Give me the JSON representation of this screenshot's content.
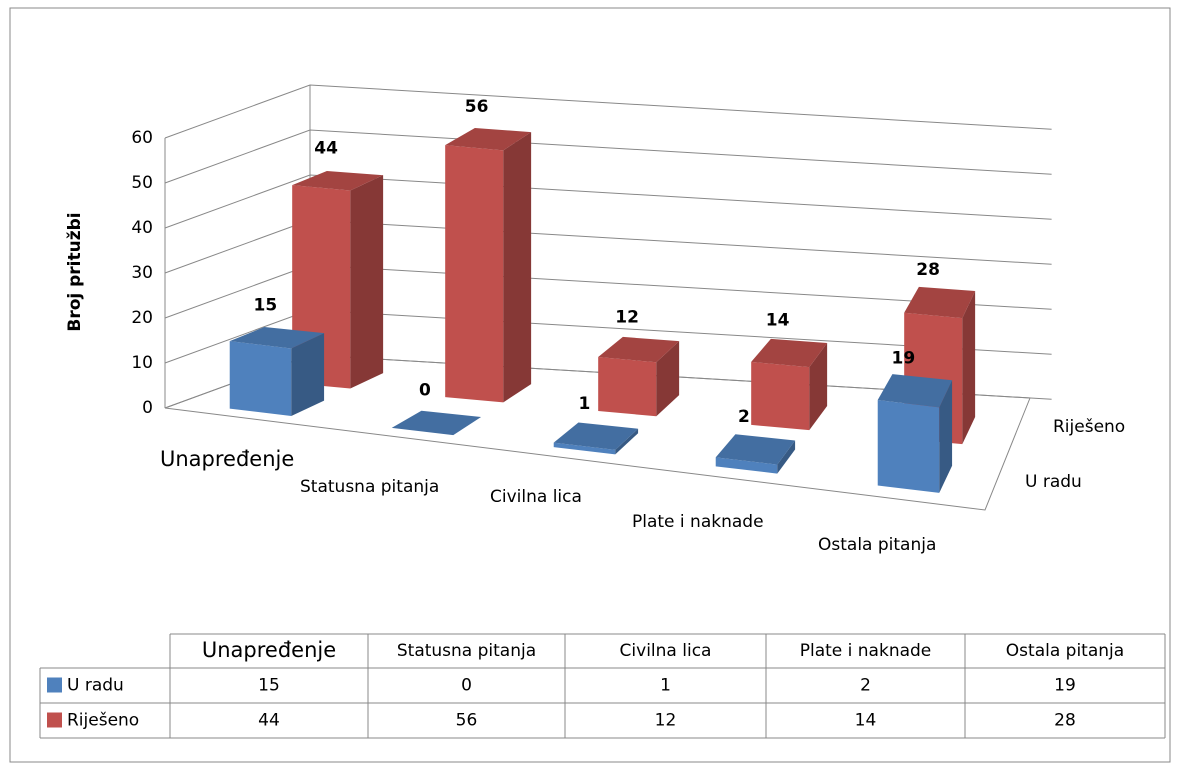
{
  "chart_data": {
    "type": "bar3d",
    "y_label": "Broj pritužbi",
    "categories": [
      "Unapređenje",
      "Statusna pitanja",
      "Civilna lica",
      "Plate i naknade",
      "Ostala pitanja"
    ],
    "series": [
      {
        "name": "U radu",
        "color": "#4f81bd",
        "values": [
          15,
          0,
          1,
          2,
          19
        ]
      },
      {
        "name": "Riješeno",
        "color": "#c0504d",
        "values": [
          44,
          56,
          12,
          14,
          28
        ]
      }
    ],
    "ylim": [
      0,
      60
    ],
    "yticks": [
      0,
      10,
      20,
      30,
      40,
      50,
      60
    ],
    "grid": true,
    "data_table": true
  }
}
